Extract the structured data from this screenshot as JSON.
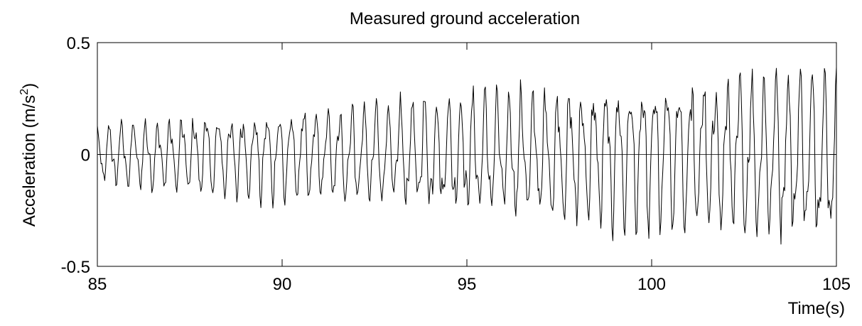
{
  "chart_data": {
    "type": "line",
    "title": "Measured ground acceleration",
    "xlabel": "Time(s)",
    "ylabel_main": "Acceleration (m/s",
    "ylabel_sup": "2",
    "ylabel_close": ")",
    "xlim": [
      85,
      105
    ],
    "ylim": [
      -0.5,
      0.5
    ],
    "xticks": [
      85,
      90,
      95,
      100,
      105
    ],
    "xtick_labels": [
      "85",
      "90",
      "95",
      "100",
      "105"
    ],
    "yticks": [
      -0.5,
      0,
      0.5
    ],
    "ytick_labels": [
      "-0.5",
      "0",
      "0.5"
    ],
    "grid": false,
    "series": [
      {
        "color": "#000000",
        "signal": {
          "t_start": 85,
          "t_end": 105,
          "sample_interval": 0.025,
          "dominant_frequency_hz": 3.05,
          "amplitude_start": 0.13,
          "amplitude_end": 0.37,
          "peak_min": -0.42,
          "peak_max": 0.39
        }
      }
    ]
  }
}
